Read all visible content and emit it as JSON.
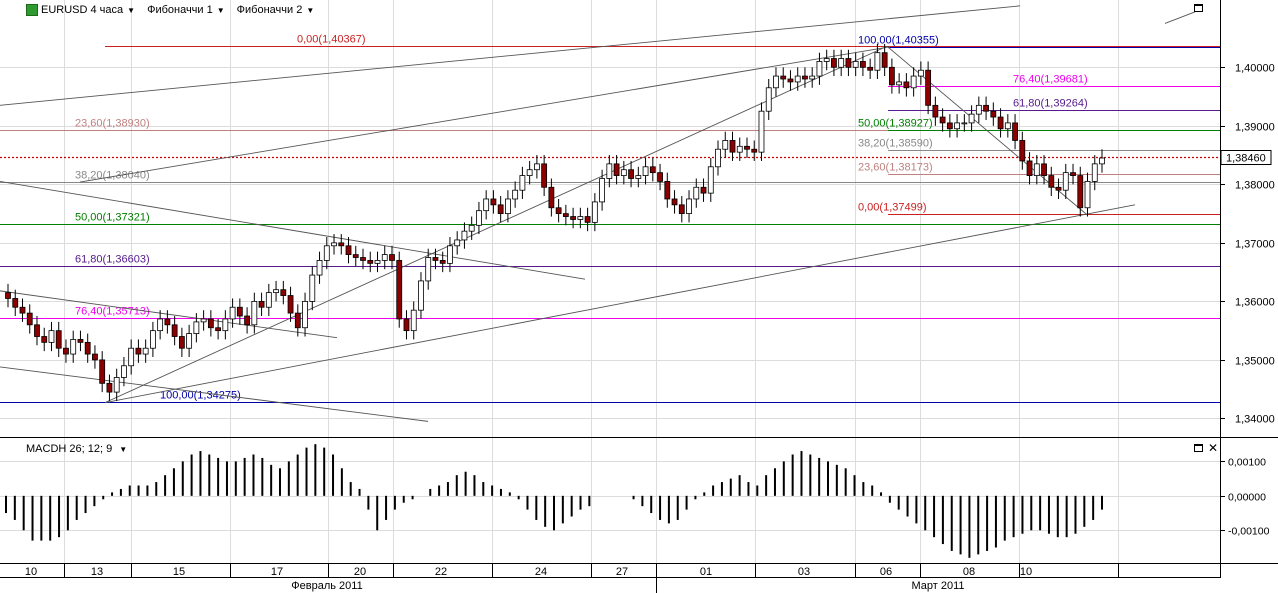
{
  "header": {
    "symbol_label": "EURUSD 4 часа",
    "fib1_label": "Фибоначчи 1",
    "fib2_label": "Фибоначчи 2"
  },
  "macd_label": "MACDH 26; 12; 9",
  "current_price_label": "1,38460",
  "colors": {
    "bull": "#ffffff",
    "bear": "#8b0000",
    "grid": "#dcdcdc",
    "fib_red": "#cc2020",
    "fib_salmon": "#c08080",
    "fib_grey": "#888888",
    "fib_green": "#008000",
    "fib_purple": "#551a8b",
    "fib_magenta": "#ee00ee",
    "fib_blue": "#0000aa",
    "current_price": "#cc0000"
  },
  "chart_data": [
    {
      "type": "candlestick",
      "title": "EURUSD 4 часа",
      "x_ticks": [
        "10",
        "13",
        "15",
        "17",
        "20",
        "22",
        "24",
        "27",
        "01",
        "03",
        "06",
        "08",
        "10"
      ],
      "month_labels": [
        "Февраль 2011",
        "Март 2011"
      ],
      "y_ticks": [
        "1,34000",
        "1,35000",
        "1,36000",
        "1,37000",
        "1,38000",
        "1,39000",
        "1,40000"
      ],
      "ylim": [
        1.337,
        1.4115
      ],
      "current_price": 1.3846,
      "fibonacci_1": [
        {
          "label": "0,00(1,40367)",
          "value": 1.40367,
          "color": "fib_red"
        },
        {
          "label": "23,60(1,38930)",
          "value": 1.3893,
          "color": "fib_salmon"
        },
        {
          "label": "38,20(1,38040)",
          "value": 1.3804,
          "color": "fib_grey"
        },
        {
          "label": "50,00(1,37321)",
          "value": 1.37321,
          "color": "fib_green"
        },
        {
          "label": "61,80(1,36603)",
          "value": 1.36603,
          "color": "fib_purple"
        },
        {
          "label": "76,40(1,35713)",
          "value": 1.35713,
          "color": "fib_magenta"
        },
        {
          "label": "100,00(1,34275)",
          "value": 1.34275,
          "color": "fib_blue"
        }
      ],
      "fibonacci_2": [
        {
          "label": "100,00(1,40355)",
          "value": 1.40355,
          "color": "fib_blue"
        },
        {
          "label": "76,40(1,39681)",
          "value": 1.39681,
          "color": "fib_magenta"
        },
        {
          "label": "61,80(1,39264)",
          "value": 1.39264,
          "color": "fib_purple"
        },
        {
          "label": "50,00(1,38927)",
          "value": 1.38927,
          "color": "fib_green"
        },
        {
          "label": "38,20(1,38590)",
          "value": 1.3859,
          "color": "fib_grey"
        },
        {
          "label": "23,60(1,38173)",
          "value": 1.38173,
          "color": "fib_salmon"
        },
        {
          "label": "0,00(1,37499)",
          "value": 1.37499,
          "color": "fib_red"
        }
      ],
      "closes": [
        1.3605,
        1.359,
        1.358,
        1.356,
        1.354,
        1.353,
        1.355,
        1.352,
        1.351,
        1.3535,
        1.353,
        1.351,
        1.35,
        1.346,
        1.3445,
        1.347,
        1.349,
        1.352,
        1.351,
        1.352,
        1.355,
        1.357,
        1.356,
        1.354,
        1.352,
        1.3545,
        1.3565,
        1.357,
        1.3555,
        1.355,
        1.357,
        1.359,
        1.3575,
        1.356,
        1.36,
        1.359,
        1.3615,
        1.362,
        1.361,
        1.358,
        1.3555,
        1.36,
        1.3645,
        1.367,
        1.3695,
        1.37,
        1.3695,
        1.368,
        1.3675,
        1.367,
        1.3665,
        1.367,
        1.368,
        1.367,
        1.357,
        1.355,
        1.3585,
        1.3635,
        1.3675,
        1.367,
        1.3665,
        1.3695,
        1.3705,
        1.372,
        1.373,
        1.3755,
        1.3775,
        1.3765,
        1.375,
        1.3775,
        1.379,
        1.3815,
        1.3825,
        1.3835,
        1.3795,
        1.376,
        1.375,
        1.3745,
        1.374,
        1.3745,
        1.3735,
        1.377,
        1.381,
        1.3835,
        1.3815,
        1.3825,
        1.381,
        1.3815,
        1.383,
        1.382,
        1.3805,
        1.3775,
        1.3765,
        1.375,
        1.3775,
        1.3795,
        1.3785,
        1.383,
        1.386,
        1.3875,
        1.3855,
        1.3865,
        1.386,
        1.3855,
        1.3925,
        1.3965,
        1.3985,
        1.398,
        1.3975,
        1.3985,
        1.398,
        1.3985,
        1.401,
        1.4015,
        1.4,
        1.4015,
        1.4,
        1.401,
        1.4,
        1.3995,
        1.4025,
        1.4,
        1.397,
        1.3975,
        1.3965,
        1.3985,
        1.3995,
        1.3935,
        1.3915,
        1.3905,
        1.3895,
        1.3905,
        1.3905,
        1.392,
        1.3935,
        1.3925,
        1.3915,
        1.3895,
        1.3905,
        1.3875,
        1.384,
        1.3815,
        1.3835,
        1.3815,
        1.3795,
        1.379,
        1.382,
        1.3815,
        1.376,
        1.3805,
        1.3835,
        1.3845
      ],
      "macdh_series": [
        -0.0005,
        -0.0007,
        -0.001,
        -0.0013,
        -0.0013,
        -0.0013,
        -0.0012,
        -0.001,
        -0.0007,
        -0.0005,
        -0.0003,
        -0.0001,
        0.0001,
        0.0002,
        0.0003,
        0.0003,
        0.0003,
        0.0004,
        0.0006,
        0.0008,
        0.001,
        0.0012,
        0.0013,
        0.0012,
        0.0011,
        0.001,
        0.001,
        0.0011,
        0.0012,
        0.0011,
        0.0009,
        0.0008,
        0.001,
        0.0012,
        0.0014,
        0.0015,
        0.0014,
        0.0012,
        0.0008,
        0.0004,
        0.0002,
        -0.0004,
        -0.001,
        -0.0007,
        -0.0004,
        -0.0002,
        -0.0001,
        0.0,
        0.0002,
        0.0003,
        0.0004,
        0.0006,
        0.0007,
        0.0006,
        0.0004,
        0.0003,
        0.0002,
        0.0001,
        -0.0001,
        -0.0004,
        -0.0007,
        -0.0009,
        -0.001,
        -0.0008,
        -0.0006,
        -0.0004,
        -0.0003,
        0.0,
        0.0,
        0.0,
        0.0,
        -0.0001,
        -0.0003,
        -0.0005,
        -0.0007,
        -0.0008,
        -0.0007,
        -0.0004,
        -0.0001,
        0.0001,
        0.0003,
        0.0004,
        0.0005,
        0.0006,
        0.0004,
        0.0003,
        0.0006,
        0.0008,
        0.001,
        0.0012,
        0.0013,
        0.0012,
        0.0011,
        0.001,
        0.0009,
        0.0008,
        0.0006,
        0.0004,
        0.0003,
        0.0001,
        -0.0002,
        -0.0004,
        -0.0006,
        -0.0008,
        -0.001,
        -0.0012,
        -0.0014,
        -0.0016,
        -0.0017,
        -0.0018,
        -0.0017,
        -0.0016,
        -0.0015,
        -0.0013,
        -0.0012,
        -0.0011,
        -0.001,
        -0.001,
        -0.0011,
        -0.0012,
        -0.0012,
        -0.0011,
        -0.0009,
        -0.0007,
        -0.0004
      ],
      "macd_y_ticks": [
        "0,00100",
        "0,00000",
        "-0,00100"
      ],
      "macd_ylim": [
        -0.00195,
        0.00165
      ]
    }
  ]
}
